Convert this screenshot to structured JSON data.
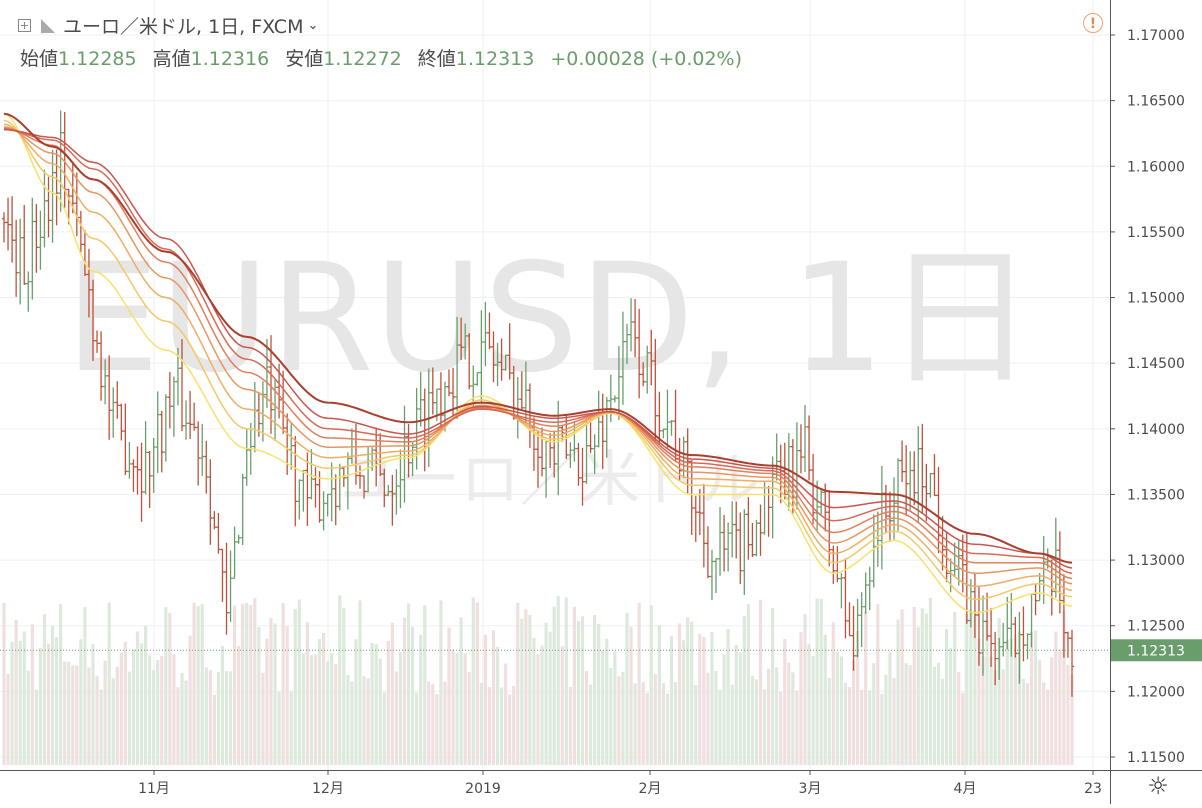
{
  "header": {
    "symbol_title": "ユーロ／米ドル, 1日, FXCM",
    "open_label": "始値",
    "open_value": "1.12285",
    "high_label": "高値",
    "high_value": "1.12316",
    "low_label": "安値",
    "low_value": "1.12272",
    "close_label": "終値",
    "close_value": "1.12313",
    "change": "+0.00028 (+0.02%)",
    "warning_glyph": "!"
  },
  "watermark": {
    "main": "EURUSD, 1日",
    "sub": "ユーロ／米ドル"
  },
  "colors": {
    "up": "#6a9d6c",
    "down": "#c0503a",
    "volume_up": "#dde9dd",
    "volume_down": "#efdfdf",
    "price_label_bg": "#6a9d6c",
    "grid": "#eef0f2"
  },
  "chart_data": {
    "type": "candlestick",
    "y_axis": {
      "min": 1.115,
      "max": 1.175,
      "ticks": [
        "1.11500",
        "1.12000",
        "1.12500",
        "1.13000",
        "1.13500",
        "1.14000",
        "1.14500",
        "1.15000",
        "1.15500",
        "1.16000",
        "1.16500",
        "1.17000"
      ]
    },
    "x_axis": {
      "ticks": [
        "11月",
        "12月",
        "2019",
        "2月",
        "3月",
        "4月",
        "23"
      ]
    },
    "last_price": "1.12313",
    "ribbon": {
      "colors": [
        "#f7e16b",
        "#f3c866",
        "#eeae63",
        "#e89660",
        "#e07f5b",
        "#d66a55",
        "#c9564d",
        "#a93f2e"
      ],
      "anchors": [
        {
          "i": 0,
          "v": [
            1.164,
            1.1635,
            1.1632,
            1.163,
            1.1629,
            1.1628,
            1.1628,
            1.164
          ]
        },
        {
          "i": 12,
          "v": [
            1.158,
            1.1592,
            1.1602,
            1.161,
            1.1616,
            1.162,
            1.1622,
            1.1615
          ]
        },
        {
          "i": 22,
          "v": [
            1.152,
            1.1545,
            1.1565,
            1.158,
            1.159,
            1.1598,
            1.1603,
            1.159
          ]
        },
        {
          "i": 40,
          "v": [
            1.146,
            1.1482,
            1.15,
            1.1515,
            1.1527,
            1.1537,
            1.1545,
            1.1535
          ]
        },
        {
          "i": 60,
          "v": [
            1.1385,
            1.14,
            1.1415,
            1.143,
            1.1443,
            1.1453,
            1.1462,
            1.147
          ]
        },
        {
          "i": 80,
          "v": [
            1.1362,
            1.137,
            1.1378,
            1.1386,
            1.1393,
            1.14,
            1.1408,
            1.142
          ]
        },
        {
          "i": 100,
          "v": [
            1.1378,
            1.138,
            1.1383,
            1.1387,
            1.139,
            1.1393,
            1.1396,
            1.1405
          ]
        },
        {
          "i": 118,
          "v": [
            1.1425,
            1.1422,
            1.142,
            1.1418,
            1.1416,
            1.1415,
            1.1417,
            1.142
          ]
        },
        {
          "i": 136,
          "v": [
            1.139,
            1.1392,
            1.1395,
            1.1398,
            1.1402,
            1.1405,
            1.1408,
            1.141
          ]
        },
        {
          "i": 150,
          "v": [
            1.1412,
            1.1412,
            1.1413,
            1.1413,
            1.1413,
            1.1413,
            1.1413,
            1.1415
          ]
        },
        {
          "i": 170,
          "v": [
            1.135,
            1.1357,
            1.1362,
            1.1367,
            1.1371,
            1.1374,
            1.1377,
            1.138
          ]
        },
        {
          "i": 190,
          "v": [
            1.135,
            1.1355,
            1.136,
            1.1363,
            1.1366,
            1.1368,
            1.137,
            1.1372
          ]
        },
        {
          "i": 205,
          "v": [
            1.129,
            1.1298,
            1.1305,
            1.1313,
            1.1321,
            1.133,
            1.134,
            1.1352
          ]
        },
        {
          "i": 220,
          "v": [
            1.1315,
            1.1322,
            1.1327,
            1.1332,
            1.1337,
            1.1341,
            1.1345,
            1.135
          ]
        },
        {
          "i": 240,
          "v": [
            1.126,
            1.127,
            1.128,
            1.129,
            1.1298,
            1.1305,
            1.1312,
            1.132
          ]
        },
        {
          "i": 256,
          "v": [
            1.1275,
            1.1282,
            1.1288,
            1.1294,
            1.1298,
            1.1302,
            1.1305,
            1.1305
          ]
        },
        {
          "i": 264,
          "v": [
            1.1265,
            1.1272,
            1.1277,
            1.1282,
            1.1286,
            1.129,
            1.1294,
            1.1298
          ]
        }
      ]
    },
    "candles": {
      "count": 265,
      "path_anchors": [
        {
          "i": 0,
          "v": 1.156
        },
        {
          "i": 5,
          "v": 1.152
        },
        {
          "i": 10,
          "v": 1.157
        },
        {
          "i": 14,
          "v": 1.161
        },
        {
          "i": 20,
          "v": 1.152
        },
        {
          "i": 27,
          "v": 1.14
        },
        {
          "i": 35,
          "v": 1.137
        },
        {
          "i": 42,
          "v": 1.143
        },
        {
          "i": 50,
          "v": 1.138
        },
        {
          "i": 55,
          "v": 1.125
        },
        {
          "i": 60,
          "v": 1.139
        },
        {
          "i": 65,
          "v": 1.143
        },
        {
          "i": 75,
          "v": 1.134
        },
        {
          "i": 85,
          "v": 1.137
        },
        {
          "i": 95,
          "v": 1.136
        },
        {
          "i": 105,
          "v": 1.142
        },
        {
          "i": 112,
          "v": 1.145
        },
        {
          "i": 120,
          "v": 1.146
        },
        {
          "i": 128,
          "v": 1.142
        },
        {
          "i": 135,
          "v": 1.138
        },
        {
          "i": 145,
          "v": 1.138
        },
        {
          "i": 155,
          "v": 1.147
        },
        {
          "i": 165,
          "v": 1.14
        },
        {
          "i": 175,
          "v": 1.13
        },
        {
          "i": 182,
          "v": 1.131
        },
        {
          "i": 190,
          "v": 1.135
        },
        {
          "i": 198,
          "v": 1.138
        },
        {
          "i": 205,
          "v": 1.13
        },
        {
          "i": 210,
          "v": 1.123
        },
        {
          "i": 215,
          "v": 1.132
        },
        {
          "i": 222,
          "v": 1.136
        },
        {
          "i": 228,
          "v": 1.137
        },
        {
          "i": 234,
          "v": 1.13
        },
        {
          "i": 242,
          "v": 1.124
        },
        {
          "i": 248,
          "v": 1.123
        },
        {
          "i": 254,
          "v": 1.127
        },
        {
          "i": 260,
          "v": 1.1285
        },
        {
          "i": 264,
          "v": 1.1231
        }
      ]
    }
  }
}
